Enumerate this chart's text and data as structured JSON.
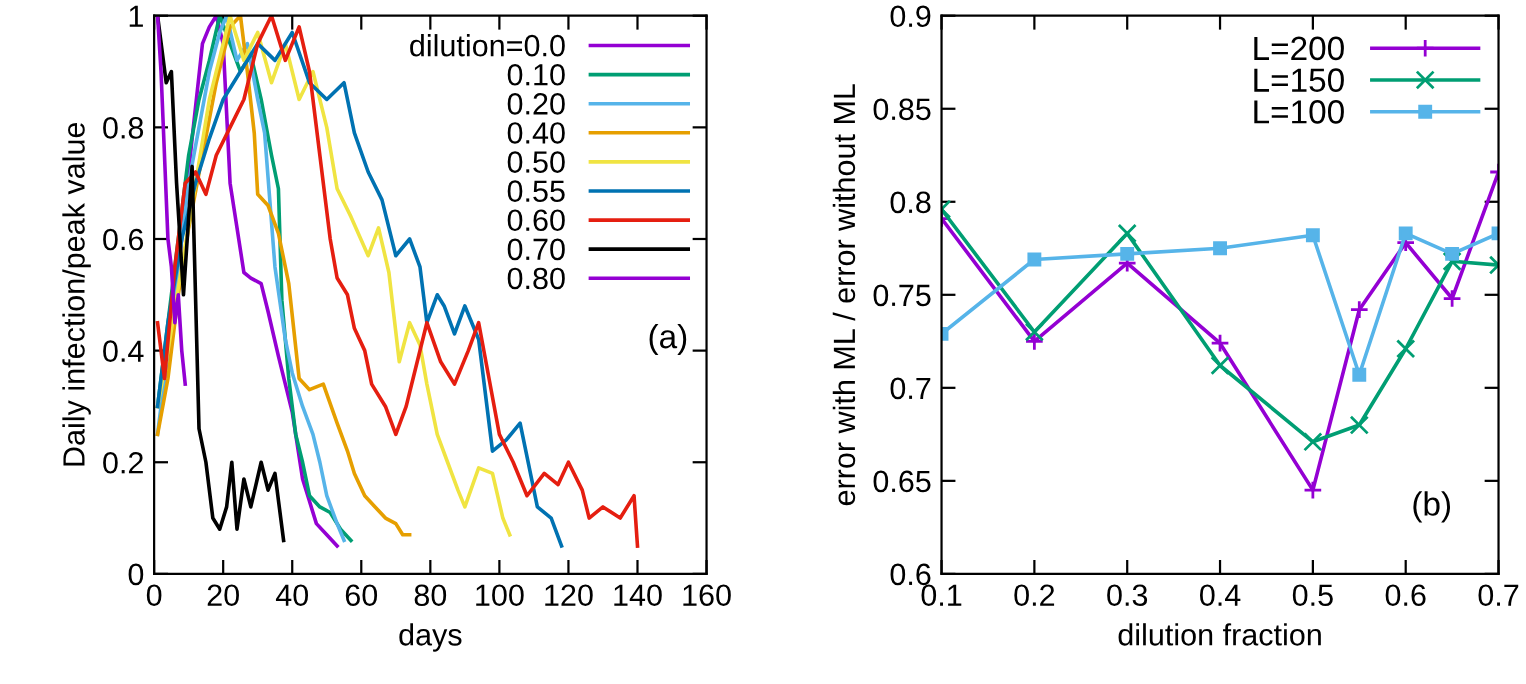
{
  "chart_data": [
    {
      "type": "line",
      "xlabel": "days",
      "ylabel": "Daily infection/peak value",
      "xlim": [
        0,
        160
      ],
      "ylim": [
        0,
        1
      ],
      "xticks": [
        0,
        20,
        40,
        60,
        80,
        100,
        120,
        140,
        160
      ],
      "yticks": [
        0,
        0.2,
        0.4,
        0.6,
        0.8,
        1
      ],
      "legend": "top right",
      "annotations": [
        "(a)"
      ],
      "series": [
        {
          "name": "dilution=0.0",
          "color": "#9400d3",
          "x": [
            2,
            5,
            8,
            11,
            14,
            16,
            18,
            20,
            22,
            24,
            26,
            28,
            31,
            33,
            36,
            38,
            40,
            43,
            45,
            47,
            50,
            53
          ],
          "values": [
            0.3,
            0.45,
            0.6,
            0.78,
            0.95,
            0.98,
            1.0,
            0.95,
            0.7,
            0.62,
            0.54,
            0.53,
            0.52,
            0.47,
            0.39,
            0.34,
            0.29,
            0.17,
            0.13,
            0.09,
            0.07,
            0.05
          ]
        },
        {
          "name": "0.10",
          "color": "#009e73",
          "x": [
            1,
            4,
            7,
            10,
            13,
            16,
            19,
            22,
            25,
            28,
            31,
            34,
            36,
            37,
            39,
            41,
            43,
            45,
            48,
            51,
            54,
            57
          ],
          "values": [
            0.3,
            0.45,
            0.6,
            0.75,
            0.85,
            0.92,
            1.0,
            0.95,
            0.9,
            0.93,
            0.85,
            0.75,
            0.69,
            0.49,
            0.35,
            0.25,
            0.2,
            0.14,
            0.12,
            0.11,
            0.08,
            0.06
          ]
        },
        {
          "name": "0.20",
          "color": "#56b4e9",
          "x": [
            1,
            4,
            7,
            10,
            13,
            16,
            19,
            21,
            24,
            27,
            30,
            32,
            35,
            38,
            40,
            43,
            46,
            48,
            50,
            53,
            55
          ],
          "values": [
            0.25,
            0.4,
            0.55,
            0.7,
            0.8,
            0.9,
            0.97,
            1.0,
            0.92,
            0.95,
            0.85,
            0.79,
            0.55,
            0.42,
            0.36,
            0.3,
            0.25,
            0.2,
            0.14,
            0.09,
            0.06
          ]
        },
        {
          "name": "0.40",
          "color": "#e69f00",
          "x": [
            1,
            4,
            7,
            10,
            14,
            18,
            22,
            25,
            27,
            29,
            30,
            33,
            36,
            39,
            42,
            45,
            49,
            53,
            56,
            58,
            61,
            64,
            67,
            70,
            72,
            74
          ],
          "values": [
            0.25,
            0.35,
            0.5,
            0.62,
            0.75,
            0.88,
            0.98,
            1.0,
            0.9,
            0.79,
            0.68,
            0.66,
            0.61,
            0.52,
            0.35,
            0.33,
            0.34,
            0.27,
            0.22,
            0.18,
            0.14,
            0.12,
            0.1,
            0.09,
            0.07,
            0.07
          ]
        },
        {
          "name": "0.50",
          "color": "#f0e442",
          "x": [
            1,
            4,
            8,
            12,
            16,
            20,
            22,
            26,
            30,
            34,
            38,
            42,
            46,
            50,
            53,
            57,
            62,
            65,
            68,
            71,
            74,
            77,
            79,
            82,
            85,
            88,
            90,
            94,
            98,
            101,
            103
          ],
          "values": [
            0.3,
            0.4,
            0.55,
            0.7,
            0.85,
            0.95,
            1.0,
            0.92,
            0.97,
            0.88,
            0.95,
            0.85,
            0.9,
            0.8,
            0.69,
            0.64,
            0.57,
            0.62,
            0.54,
            0.38,
            0.45,
            0.41,
            0.34,
            0.25,
            0.2,
            0.15,
            0.12,
            0.19,
            0.18,
            0.1,
            0.07
          ]
        },
        {
          "name": "0.55",
          "color": "#0072b2",
          "x": [
            1,
            4,
            8,
            12,
            16,
            20,
            25,
            30,
            35,
            40,
            45,
            50,
            55,
            58,
            62,
            66,
            70,
            74,
            77,
            79,
            82,
            84,
            87,
            90,
            94,
            98,
            102,
            106,
            111,
            115,
            118
          ],
          "values": [
            0.3,
            0.45,
            0.6,
            0.7,
            0.78,
            0.85,
            0.9,
            0.95,
            0.92,
            0.97,
            0.88,
            0.85,
            0.88,
            0.79,
            0.72,
            0.67,
            0.57,
            0.6,
            0.55,
            0.45,
            0.5,
            0.48,
            0.43,
            0.48,
            0.42,
            0.22,
            0.24,
            0.27,
            0.12,
            0.1,
            0.05
          ]
        },
        {
          "name": "0.60",
          "color": "#e51e10",
          "x": [
            1,
            3,
            6,
            9,
            12,
            15,
            18,
            22,
            26,
            30,
            34,
            38,
            42,
            45,
            48,
            51,
            53,
            56,
            58,
            61,
            63,
            67,
            70,
            73,
            75,
            79,
            83,
            87,
            91,
            94,
            97,
            100,
            104,
            108,
            113,
            117,
            120,
            124,
            126,
            130,
            135,
            139,
            140
          ],
          "values": [
            0.45,
            0.35,
            0.55,
            0.7,
            0.72,
            0.68,
            0.75,
            0.8,
            0.85,
            0.95,
            1.0,
            0.92,
            0.98,
            0.9,
            0.75,
            0.6,
            0.53,
            0.5,
            0.44,
            0.4,
            0.34,
            0.3,
            0.25,
            0.3,
            0.35,
            0.45,
            0.38,
            0.34,
            0.4,
            0.45,
            0.35,
            0.25,
            0.2,
            0.14,
            0.18,
            0.16,
            0.2,
            0.15,
            0.1,
            0.12,
            0.1,
            0.14,
            0.05
          ]
        },
        {
          "name": "0.70",
          "color": "#000000",
          "x": [
            1,
            3.5,
            5,
            6.5,
            8.5,
            11,
            13,
            15,
            17,
            19,
            21,
            22.5,
            24,
            26,
            28,
            31,
            33,
            35,
            37.5
          ],
          "values": [
            1.0,
            0.88,
            0.9,
            0.7,
            0.5,
            0.73,
            0.26,
            0.2,
            0.1,
            0.08,
            0.12,
            0.2,
            0.08,
            0.17,
            0.12,
            0.2,
            0.15,
            0.18,
            0.06
          ]
        },
        {
          "name": "0.80",
          "color": "#9400d3",
          "x": [
            1,
            2,
            3,
            4,
            5,
            6,
            7,
            8,
            9
          ],
          "values": [
            1.0,
            0.9,
            0.75,
            0.6,
            0.55,
            0.45,
            0.5,
            0.4,
            0.34
          ]
        }
      ]
    },
    {
      "type": "line",
      "xlabel": "dilution fraction",
      "ylabel": "error with ML / error without ML",
      "xlim": [
        0.1,
        0.7
      ],
      "ylim": [
        0.6,
        0.9
      ],
      "xticks": [
        0.1,
        0.2,
        0.3,
        0.4,
        0.5,
        0.6,
        0.7
      ],
      "yticks": [
        0.6,
        0.65,
        0.7,
        0.75,
        0.8,
        0.85,
        0.9
      ],
      "legend": "top right",
      "annotations": [
        "(b)"
      ],
      "x": [
        0.1,
        0.2,
        0.3,
        0.4,
        0.5,
        0.55,
        0.6,
        0.65,
        0.7
      ],
      "series": [
        {
          "name": "L=200",
          "color": "#9400d3",
          "marker": "cross",
          "values": [
            0.791,
            0.725,
            0.767,
            0.724,
            0.645,
            0.742,
            0.778,
            0.748,
            0.816
          ]
        },
        {
          "name": "L=150",
          "color": "#009e73",
          "marker": "cross",
          "values": [
            0.796,
            0.73,
            0.783,
            0.712,
            0.671,
            0.68,
            0.721,
            0.768,
            0.766
          ]
        },
        {
          "name": "L=100",
          "color": "#56b4e9",
          "marker": "square",
          "values": [
            0.729,
            0.769,
            0.772,
            0.775,
            0.782,
            0.707,
            0.783,
            0.772,
            0.783
          ]
        }
      ]
    }
  ]
}
